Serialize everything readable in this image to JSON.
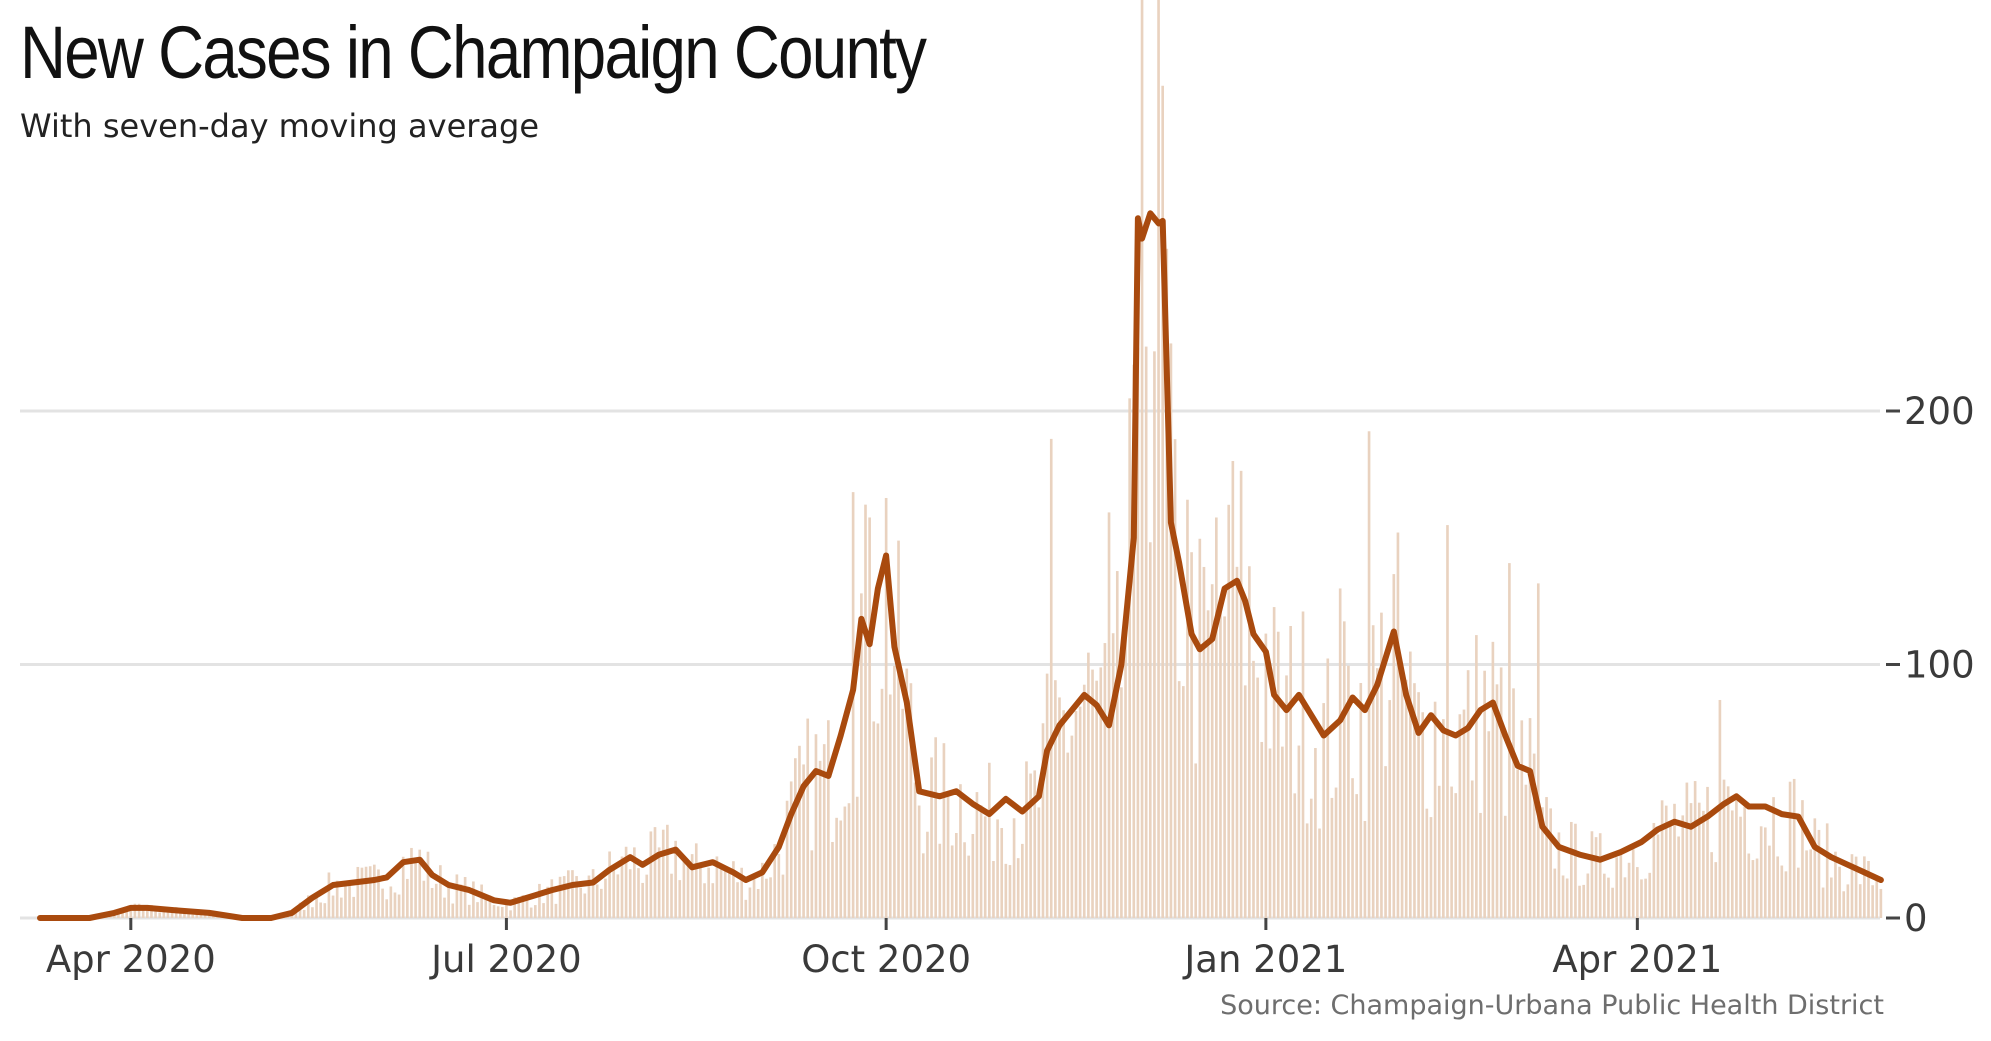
{
  "chart_data": {
    "type": "bar",
    "title": "New Cases in Champaign County",
    "subtitle": "With seven-day moving average",
    "source": "Source: Champaign-Urbana Public Health District",
    "x_range": [
      "2020-03-10",
      "2021-05-31"
    ],
    "ylim": [
      0,
      280
    ],
    "y_ticks": [
      0,
      100,
      200
    ],
    "y_tick_labels": [
      "0",
      "100",
      "200"
    ],
    "x_ticks": [
      "2020-04-01",
      "2020-07-01",
      "2020-10-01",
      "2021-01-01",
      "2021-04-01"
    ],
    "x_tick_labels": [
      "Apr 2020",
      "Jul 2020",
      "Oct 2020",
      "Jan 2021",
      "Apr 2021"
    ],
    "grid": "horizontal",
    "y_axis_position": "right",
    "colors": {
      "bars": "#e9d2bf",
      "average": "#a94a0e",
      "grid": "#e3e3e3"
    },
    "series": [
      {
        "type": "line",
        "role": "seven-day moving average",
        "points": [
          [
            "2020-03-10",
            0
          ],
          [
            "2020-03-22",
            0
          ],
          [
            "2020-03-28",
            2
          ],
          [
            "2020-04-01",
            4
          ],
          [
            "2020-04-05",
            4
          ],
          [
            "2020-04-12",
            3
          ],
          [
            "2020-04-20",
            2
          ],
          [
            "2020-04-28",
            0
          ],
          [
            "2020-05-05",
            0
          ],
          [
            "2020-05-10",
            2
          ],
          [
            "2020-05-15",
            8
          ],
          [
            "2020-05-20",
            13
          ],
          [
            "2020-05-25",
            14
          ],
          [
            "2020-05-30",
            15
          ],
          [
            "2020-06-02",
            16
          ],
          [
            "2020-06-06",
            22
          ],
          [
            "2020-06-10",
            23
          ],
          [
            "2020-06-13",
            17
          ],
          [
            "2020-06-17",
            13
          ],
          [
            "2020-06-22",
            11
          ],
          [
            "2020-06-28",
            7
          ],
          [
            "2020-07-02",
            6
          ],
          [
            "2020-07-08",
            9
          ],
          [
            "2020-07-12",
            11
          ],
          [
            "2020-07-17",
            13
          ],
          [
            "2020-07-22",
            14
          ],
          [
            "2020-07-26",
            19
          ],
          [
            "2020-07-31",
            24
          ],
          [
            "2020-08-03",
            21
          ],
          [
            "2020-08-07",
            25
          ],
          [
            "2020-08-11",
            27
          ],
          [
            "2020-08-15",
            20
          ],
          [
            "2020-08-20",
            22
          ],
          [
            "2020-08-25",
            18
          ],
          [
            "2020-08-28",
            15
          ],
          [
            "2020-09-01",
            18
          ],
          [
            "2020-09-05",
            28
          ],
          [
            "2020-09-08",
            41
          ],
          [
            "2020-09-11",
            52
          ],
          [
            "2020-09-14",
            58
          ],
          [
            "2020-09-17",
            56
          ],
          [
            "2020-09-20",
            72
          ],
          [
            "2020-09-23",
            90
          ],
          [
            "2020-09-25",
            118
          ],
          [
            "2020-09-27",
            108
          ],
          [
            "2020-09-29",
            130
          ],
          [
            "2020-10-01",
            143
          ],
          [
            "2020-10-03",
            107
          ],
          [
            "2020-10-06",
            85
          ],
          [
            "2020-10-09",
            50
          ],
          [
            "2020-10-14",
            48
          ],
          [
            "2020-10-18",
            50
          ],
          [
            "2020-10-22",
            45
          ],
          [
            "2020-10-26",
            41
          ],
          [
            "2020-10-30",
            47
          ],
          [
            "2020-11-03",
            42
          ],
          [
            "2020-11-07",
            48
          ],
          [
            "2020-11-09",
            66
          ],
          [
            "2020-11-12",
            76
          ],
          [
            "2020-11-15",
            82
          ],
          [
            "2020-11-18",
            88
          ],
          [
            "2020-11-21",
            84
          ],
          [
            "2020-11-24",
            76
          ],
          [
            "2020-11-27",
            100
          ],
          [
            "2020-11-30",
            150
          ],
          [
            "2020-12-01",
            276
          ],
          [
            "2020-12-02",
            268
          ],
          [
            "2020-12-04",
            278
          ],
          [
            "2020-12-06",
            274
          ],
          [
            "2020-12-07",
            275
          ],
          [
            "2020-12-09",
            156
          ],
          [
            "2020-12-11",
            140
          ],
          [
            "2020-12-14",
            112
          ],
          [
            "2020-12-16",
            106
          ],
          [
            "2020-12-19",
            110
          ],
          [
            "2020-12-22",
            130
          ],
          [
            "2020-12-25",
            133
          ],
          [
            "2020-12-27",
            125
          ],
          [
            "2020-12-29",
            112
          ],
          [
            "2021-01-01",
            105
          ],
          [
            "2021-01-03",
            88
          ],
          [
            "2021-01-06",
            82
          ],
          [
            "2021-01-09",
            88
          ],
          [
            "2021-01-12",
            80
          ],
          [
            "2021-01-15",
            72
          ],
          [
            "2021-01-19",
            78
          ],
          [
            "2021-01-22",
            87
          ],
          [
            "2021-01-25",
            82
          ],
          [
            "2021-01-28",
            92
          ],
          [
            "2021-02-01",
            113
          ],
          [
            "2021-02-04",
            88
          ],
          [
            "2021-02-07",
            73
          ],
          [
            "2021-02-10",
            80
          ],
          [
            "2021-02-13",
            74
          ],
          [
            "2021-02-16",
            72
          ],
          [
            "2021-02-19",
            75
          ],
          [
            "2021-02-22",
            82
          ],
          [
            "2021-02-25",
            85
          ],
          [
            "2021-02-28",
            72
          ],
          [
            "2021-03-03",
            60
          ],
          [
            "2021-03-06",
            58
          ],
          [
            "2021-03-09",
            36
          ],
          [
            "2021-03-13",
            28
          ],
          [
            "2021-03-18",
            25
          ],
          [
            "2021-03-23",
            23
          ],
          [
            "2021-03-28",
            26
          ],
          [
            "2021-04-02",
            30
          ],
          [
            "2021-04-06",
            35
          ],
          [
            "2021-04-10",
            38
          ],
          [
            "2021-04-14",
            36
          ],
          [
            "2021-04-18",
            40
          ],
          [
            "2021-04-22",
            45
          ],
          [
            "2021-04-25",
            48
          ],
          [
            "2021-04-28",
            44
          ],
          [
            "2021-05-02",
            44
          ],
          [
            "2021-05-06",
            41
          ],
          [
            "2021-05-10",
            40
          ],
          [
            "2021-05-14",
            28
          ],
          [
            "2021-05-18",
            24
          ],
          [
            "2021-05-22",
            21
          ],
          [
            "2021-05-26",
            18
          ],
          [
            "2021-05-30",
            15
          ]
        ]
      },
      {
        "type": "bar",
        "role": "daily new cases",
        "spikes": [
          [
            "2020-09-23",
            168
          ],
          [
            "2020-09-27",
            158
          ],
          [
            "2020-11-10",
            189
          ],
          [
            "2020-11-24",
            160
          ],
          [
            "2020-11-29",
            205
          ],
          [
            "2020-12-01",
            225
          ],
          [
            "2020-12-13",
            165
          ],
          [
            "2020-12-20",
            158
          ],
          [
            "2020-12-23",
            163
          ],
          [
            "2021-01-19",
            130
          ],
          [
            "2021-01-26",
            192
          ],
          [
            "2021-02-14",
            155
          ],
          [
            "2021-03-01",
            140
          ],
          [
            "2021-03-08",
            132
          ],
          [
            "2021-04-21",
            86
          ]
        ]
      }
    ]
  }
}
